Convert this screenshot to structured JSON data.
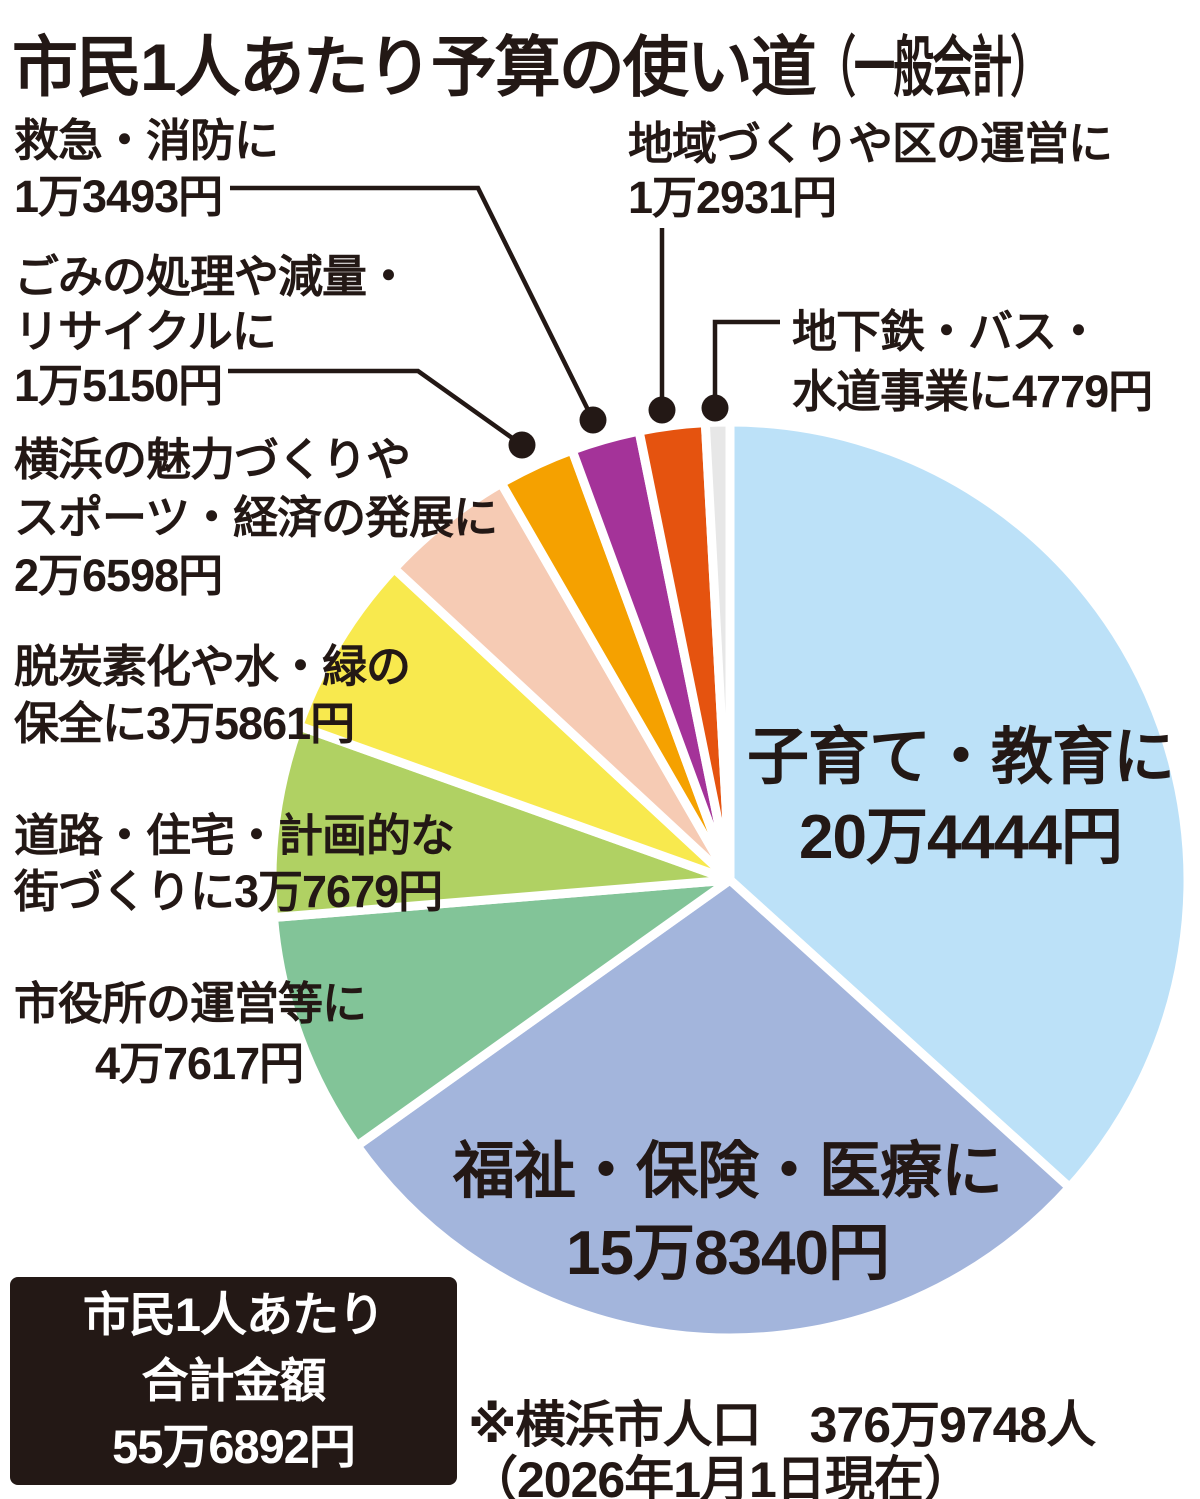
{
  "title": "市民1人あたり予算の使い道（一般会計）",
  "title_main": "市民1人あたり予算の使い道",
  "title_paren": "（一般会計）",
  "ink_color": "#231815",
  "chart_data": {
    "type": "pie",
    "title": "市民1人あたり予算の使い道（一般会計）",
    "unit": "円",
    "start_angle": "12時方向",
    "direction": "clockwise",
    "legend_position": "none",
    "total_value": 556892,
    "total_display": "55万6892円",
    "segments": [
      {
        "label": "子育て・教育に",
        "value": 204444,
        "display": "20万4444円",
        "color": "#bce1f8"
      },
      {
        "label": "福祉・保険・医療に",
        "value": 158340,
        "display": "15万8340円",
        "color": "#a3b5dc"
      },
      {
        "label": "市役所の運営等に",
        "value": 47617,
        "display": "4万7617円",
        "color": "#82c498"
      },
      {
        "label": "道路・住宅・計画的な街づくりに",
        "value": 37679,
        "display": "3万7679円",
        "color": "#b0d163"
      },
      {
        "label": "脱炭素化や水・緑の保全に",
        "value": 35861,
        "display": "3万5861円",
        "color": "#f8e94e"
      },
      {
        "label": "横浜の魅力づくりやスポーツ・経済の発展に",
        "value": 26598,
        "display": "2万6598円",
        "color": "#f6cbb4"
      },
      {
        "label": "ごみの処理や減量・リサイクルに",
        "value": 15150,
        "display": "1万5150円",
        "color": "#f5a100"
      },
      {
        "label": "救急・消防に",
        "value": 13493,
        "display": "1万3493円",
        "color": "#a43399"
      },
      {
        "label": "地域づくりや区の運営に",
        "value": 12931,
        "display": "1万2931円",
        "color": "#e5530f"
      },
      {
        "label": "地下鉄・バス・水道事業に",
        "value": 4779,
        "display": "4779円",
        "color": "#e7e7e7"
      }
    ]
  },
  "callouts": {
    "kyukyu": {
      "lines": [
        "救急・消防に",
        "1万3493円"
      ]
    },
    "gomi": {
      "lines": [
        "ごみの処理や減量・",
        "リサイクルに",
        "1万5150円"
      ]
    },
    "miryoku": {
      "lines": [
        "横浜の魅力づくりや",
        "スポーツ・経済の発展に",
        "2万6598円"
      ]
    },
    "datsutanso": {
      "lines": [
        "脱炭素化や水・緑の",
        "保全に3万5861円"
      ]
    },
    "doro": {
      "lines": [
        "道路・住宅・計画的な",
        "街づくりに3万7679円"
      ]
    },
    "shiyakusho": {
      "lines": [
        "市役所の運営等に",
        "4万7617円"
      ]
    },
    "chiiki": {
      "lines": [
        "地域づくりや区の運営に",
        "1万2931円"
      ]
    },
    "chikatetsu": {
      "lines": [
        "地下鉄・バス・",
        "水道事業に4779円"
      ]
    }
  },
  "inner_labels": {
    "kosodate": {
      "lines": [
        "子育て・教育に",
        "20万4444円"
      ]
    },
    "fukushi": {
      "lines": [
        "福祉・保険・医療に",
        "15万8340円"
      ]
    }
  },
  "total_box": {
    "lines": [
      "市民1人あたり",
      "合計金額",
      "55万6892円"
    ]
  },
  "footnote": {
    "lines": [
      "※横浜市人口　376万9748人",
      "（2026年1月1日現在）"
    ]
  }
}
